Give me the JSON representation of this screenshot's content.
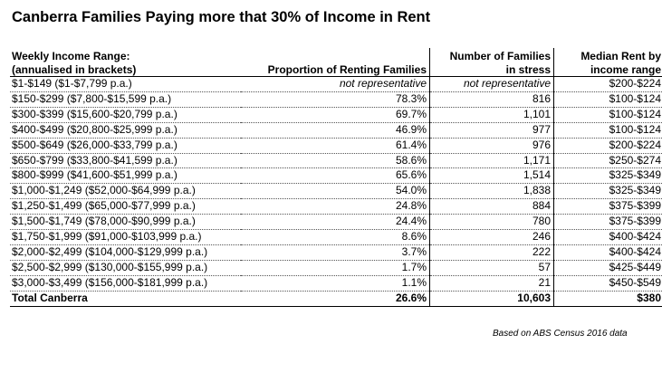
{
  "title": "Canberra Families Paying more that 30% of Income in Rent",
  "headers": {
    "income_line1": "Weekly Income Range:",
    "income_line2": "(annualised in brackets)",
    "proportion": "Proportion of Renting Families",
    "families_line1": "Number of Families",
    "families_line2": "in stress",
    "rent_line1": "Median Rent by",
    "rent_line2": "income range"
  },
  "rows": [
    {
      "range": "$1-$149 ($1-$7,799 p.a.)",
      "proportion": "not representative",
      "families": "not representative",
      "rent": "$200-$224"
    },
    {
      "range": "$150-$299 ($7,800-$15,599 p.a.)",
      "proportion": "78.3%",
      "families": "816",
      "rent": "$100-$124"
    },
    {
      "range": "$300-$399 ($15,600-$20,799 p.a.)",
      "proportion": "69.7%",
      "families": "1,101",
      "rent": "$100-$124"
    },
    {
      "range": "$400-$499 ($20,800-$25,999 p.a.)",
      "proportion": "46.9%",
      "families": "977",
      "rent": "$100-$124"
    },
    {
      "range": "$500-$649 ($26,000-$33,799 p.a.)",
      "proportion": "61.4%",
      "families": "976",
      "rent": "$200-$224"
    },
    {
      "range": "$650-$799 ($33,800-$41,599 p.a.)",
      "proportion": "58.6%",
      "families": "1,171",
      "rent": "$250-$274"
    },
    {
      "range": "$800-$999 ($41,600-$51,999 p.a.)",
      "proportion": "65.6%",
      "families": "1,514",
      "rent": "$325-$349"
    },
    {
      "range": "$1,000-$1,249 ($52,000-$64,999 p.a.)",
      "proportion": "54.0%",
      "families": "1,838",
      "rent": "$325-$349"
    },
    {
      "range": "$1,250-$1,499 ($65,000-$77,999 p.a.)",
      "proportion": "24.8%",
      "families": "884",
      "rent": "$375-$399"
    },
    {
      "range": "$1,500-$1,749 ($78,000-$90,999 p.a.)",
      "proportion": "24.4%",
      "families": "780",
      "rent": "$375-$399"
    },
    {
      "range": "$1,750-$1,999 ($91,000-$103,999 p.a.)",
      "proportion": "8.6%",
      "families": "246",
      "rent": "$400-$424"
    },
    {
      "range": "$2,000-$2,499 ($104,000-$129,999 p.a.)",
      "proportion": "3.7%",
      "families": "222",
      "rent": "$400-$424"
    },
    {
      "range": "$2,500-$2,999 ($130,000-$155,999 p.a.)",
      "proportion": "1.7%",
      "families": "57",
      "rent": "$425-$449"
    },
    {
      "range": "$3,000-$3,499 ($156,000-$181,999 p.a.)",
      "proportion": "1.1%",
      "families": "21",
      "rent": "$450-$549"
    }
  ],
  "total": {
    "range": "Total Canberra",
    "proportion": "26.6%",
    "families": "10,603",
    "rent": "$380"
  },
  "source": "Based on ABS Census 2016 data"
}
